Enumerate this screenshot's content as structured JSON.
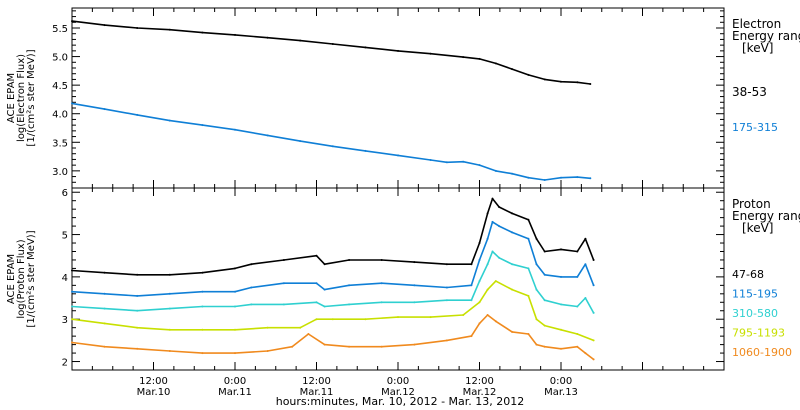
{
  "chart_data": [
    {
      "type": "line",
      "xlim": [
        0,
        4
      ],
      "x_ticks": [
        {
          "x": 0.5,
          "time": "12:00",
          "date": "Mar.10"
        },
        {
          "x": 1.0,
          "time": "0:00",
          "date": "Mar.11"
        },
        {
          "x": 1.5,
          "time": "12:00",
          "date": "Mar.11"
        },
        {
          "x": 2.0,
          "time": "0:00",
          "date": "Mar.12"
        },
        {
          "x": 2.5,
          "time": "12:00",
          "date": "Mar.12"
        },
        {
          "x": 3.0,
          "time": "0:00",
          "date": "Mar.13"
        }
      ],
      "xlabel": "hours:minutes, Mar. 10, 2012 - Mar. 13, 2012",
      "ylabel_lines": [
        "ACE EPAM",
        "log(Electron Flux)",
        "[1/(cm²s ster MeV)]"
      ],
      "ylim": [
        2.7,
        5.85
      ],
      "y_ticks": [
        3.0,
        3.5,
        4.0,
        4.5,
        5.0,
        5.5
      ],
      "legend_title_lines": [
        "Electron",
        "Energy range",
        "[keV]"
      ],
      "series": [
        {
          "name": "38-53",
          "color": "#000000",
          "points": [
            [
              0,
              5.62
            ],
            [
              0.2,
              5.55
            ],
            [
              0.4,
              5.5
            ],
            [
              0.6,
              5.47
            ],
            [
              0.8,
              5.42
            ],
            [
              1.0,
              5.38
            ],
            [
              1.2,
              5.33
            ],
            [
              1.4,
              5.28
            ],
            [
              1.6,
              5.22
            ],
            [
              1.8,
              5.16
            ],
            [
              2.0,
              5.1
            ],
            [
              2.2,
              5.05
            ],
            [
              2.4,
              4.99
            ],
            [
              2.5,
              4.96
            ],
            [
              2.6,
              4.88
            ],
            [
              2.7,
              4.78
            ],
            [
              2.8,
              4.68
            ],
            [
              2.9,
              4.6
            ],
            [
              3.0,
              4.56
            ],
            [
              3.1,
              4.55
            ],
            [
              3.18,
              4.52
            ]
          ]
        },
        {
          "name": "175-315",
          "color": "#0f7fd6",
          "points": [
            [
              0,
              4.18
            ],
            [
              0.2,
              4.08
            ],
            [
              0.4,
              3.98
            ],
            [
              0.6,
              3.88
            ],
            [
              0.8,
              3.8
            ],
            [
              1.0,
              3.72
            ],
            [
              1.2,
              3.62
            ],
            [
              1.4,
              3.52
            ],
            [
              1.6,
              3.43
            ],
            [
              1.8,
              3.35
            ],
            [
              2.0,
              3.27
            ],
            [
              2.2,
              3.19
            ],
            [
              2.3,
              3.15
            ],
            [
              2.4,
              3.16
            ],
            [
              2.5,
              3.1
            ],
            [
              2.6,
              3.0
            ],
            [
              2.7,
              2.95
            ],
            [
              2.8,
              2.88
            ],
            [
              2.9,
              2.84
            ],
            [
              3.0,
              2.88
            ],
            [
              3.1,
              2.89
            ],
            [
              3.18,
              2.87
            ]
          ]
        }
      ]
    },
    {
      "type": "line",
      "xlim": [
        0,
        4
      ],
      "ylabel_lines": [
        "ACE EPAM",
        "log(Proton Flux)",
        "[1/(cm²s ster MeV)]"
      ],
      "ylim": [
        1.8,
        6.1
      ],
      "y_ticks": [
        2,
        3,
        4,
        5,
        6
      ],
      "legend_title_lines": [
        "Proton",
        "Energy range",
        "[keV]"
      ],
      "series": [
        {
          "name": "47-68",
          "color": "#000000",
          "points": [
            [
              0,
              4.15
            ],
            [
              0.2,
              4.1
            ],
            [
              0.4,
              4.05
            ],
            [
              0.6,
              4.05
            ],
            [
              0.8,
              4.1
            ],
            [
              1.0,
              4.2
            ],
            [
              1.1,
              4.3
            ],
            [
              1.3,
              4.4
            ],
            [
              1.5,
              4.5
            ],
            [
              1.55,
              4.3
            ],
            [
              1.7,
              4.4
            ],
            [
              1.9,
              4.4
            ],
            [
              2.1,
              4.35
            ],
            [
              2.3,
              4.3
            ],
            [
              2.45,
              4.3
            ],
            [
              2.5,
              4.8
            ],
            [
              2.55,
              5.5
            ],
            [
              2.58,
              5.85
            ],
            [
              2.62,
              5.65
            ],
            [
              2.7,
              5.5
            ],
            [
              2.8,
              5.35
            ],
            [
              2.85,
              4.9
            ],
            [
              2.9,
              4.6
            ],
            [
              3.0,
              4.65
            ],
            [
              3.1,
              4.6
            ],
            [
              3.15,
              4.9
            ],
            [
              3.2,
              4.4
            ]
          ]
        },
        {
          "name": "115-195",
          "color": "#0f7fd6",
          "points": [
            [
              0,
              3.65
            ],
            [
              0.2,
              3.6
            ],
            [
              0.4,
              3.55
            ],
            [
              0.6,
              3.6
            ],
            [
              0.8,
              3.65
            ],
            [
              1.0,
              3.65
            ],
            [
              1.1,
              3.75
            ],
            [
              1.3,
              3.85
            ],
            [
              1.5,
              3.85
            ],
            [
              1.55,
              3.7
            ],
            [
              1.7,
              3.8
            ],
            [
              1.9,
              3.85
            ],
            [
              2.1,
              3.8
            ],
            [
              2.3,
              3.75
            ],
            [
              2.45,
              3.8
            ],
            [
              2.5,
              4.4
            ],
            [
              2.55,
              4.9
            ],
            [
              2.58,
              5.3
            ],
            [
              2.62,
              5.2
            ],
            [
              2.7,
              5.05
            ],
            [
              2.8,
              4.9
            ],
            [
              2.85,
              4.3
            ],
            [
              2.9,
              4.05
            ],
            [
              3.0,
              4.0
            ],
            [
              3.1,
              4.0
            ],
            [
              3.15,
              4.3
            ],
            [
              3.2,
              3.8
            ]
          ]
        },
        {
          "name": "310-580",
          "color": "#2fd0d0",
          "points": [
            [
              0,
              3.3
            ],
            [
              0.2,
              3.25
            ],
            [
              0.4,
              3.2
            ],
            [
              0.6,
              3.25
            ],
            [
              0.8,
              3.3
            ],
            [
              1.0,
              3.3
            ],
            [
              1.1,
              3.35
            ],
            [
              1.3,
              3.35
            ],
            [
              1.5,
              3.4
            ],
            [
              1.55,
              3.3
            ],
            [
              1.7,
              3.35
            ],
            [
              1.9,
              3.4
            ],
            [
              2.1,
              3.4
            ],
            [
              2.3,
              3.45
            ],
            [
              2.45,
              3.45
            ],
            [
              2.5,
              3.9
            ],
            [
              2.55,
              4.3
            ],
            [
              2.58,
              4.6
            ],
            [
              2.62,
              4.45
            ],
            [
              2.7,
              4.3
            ],
            [
              2.8,
              4.2
            ],
            [
              2.85,
              3.7
            ],
            [
              2.9,
              3.45
            ],
            [
              3.0,
              3.35
            ],
            [
              3.1,
              3.3
            ],
            [
              3.15,
              3.5
            ],
            [
              3.2,
              3.15
            ]
          ]
        },
        {
          "name": "795-1193",
          "color": "#c8e000",
          "points": [
            [
              0,
              3.0
            ],
            [
              0.2,
              2.9
            ],
            [
              0.4,
              2.8
            ],
            [
              0.6,
              2.75
            ],
            [
              0.8,
              2.75
            ],
            [
              1.0,
              2.75
            ],
            [
              1.2,
              2.8
            ],
            [
              1.4,
              2.8
            ],
            [
              1.5,
              3.0
            ],
            [
              1.6,
              3.0
            ],
            [
              1.8,
              3.0
            ],
            [
              2.0,
              3.05
            ],
            [
              2.2,
              3.05
            ],
            [
              2.4,
              3.1
            ],
            [
              2.5,
              3.4
            ],
            [
              2.55,
              3.7
            ],
            [
              2.6,
              3.9
            ],
            [
              2.7,
              3.7
            ],
            [
              2.8,
              3.55
            ],
            [
              2.85,
              3.0
            ],
            [
              2.9,
              2.85
            ],
            [
              3.0,
              2.75
            ],
            [
              3.1,
              2.65
            ],
            [
              3.2,
              2.5
            ]
          ]
        },
        {
          "name": "1060-1900",
          "color": "#f08a1e",
          "points": [
            [
              0,
              2.45
            ],
            [
              0.2,
              2.35
            ],
            [
              0.4,
              2.3
            ],
            [
              0.6,
              2.25
            ],
            [
              0.8,
              2.2
            ],
            [
              1.0,
              2.2
            ],
            [
              1.2,
              2.25
            ],
            [
              1.35,
              2.35
            ],
            [
              1.45,
              2.65
            ],
            [
              1.55,
              2.4
            ],
            [
              1.7,
              2.35
            ],
            [
              1.9,
              2.35
            ],
            [
              2.1,
              2.4
            ],
            [
              2.3,
              2.5
            ],
            [
              2.45,
              2.6
            ],
            [
              2.5,
              2.9
            ],
            [
              2.55,
              3.1
            ],
            [
              2.6,
              2.95
            ],
            [
              2.7,
              2.7
            ],
            [
              2.8,
              2.65
            ],
            [
              2.85,
              2.4
            ],
            [
              2.9,
              2.35
            ],
            [
              3.0,
              2.3
            ],
            [
              3.1,
              2.35
            ],
            [
              3.15,
              2.2
            ],
            [
              3.2,
              2.05
            ]
          ]
        }
      ]
    }
  ]
}
